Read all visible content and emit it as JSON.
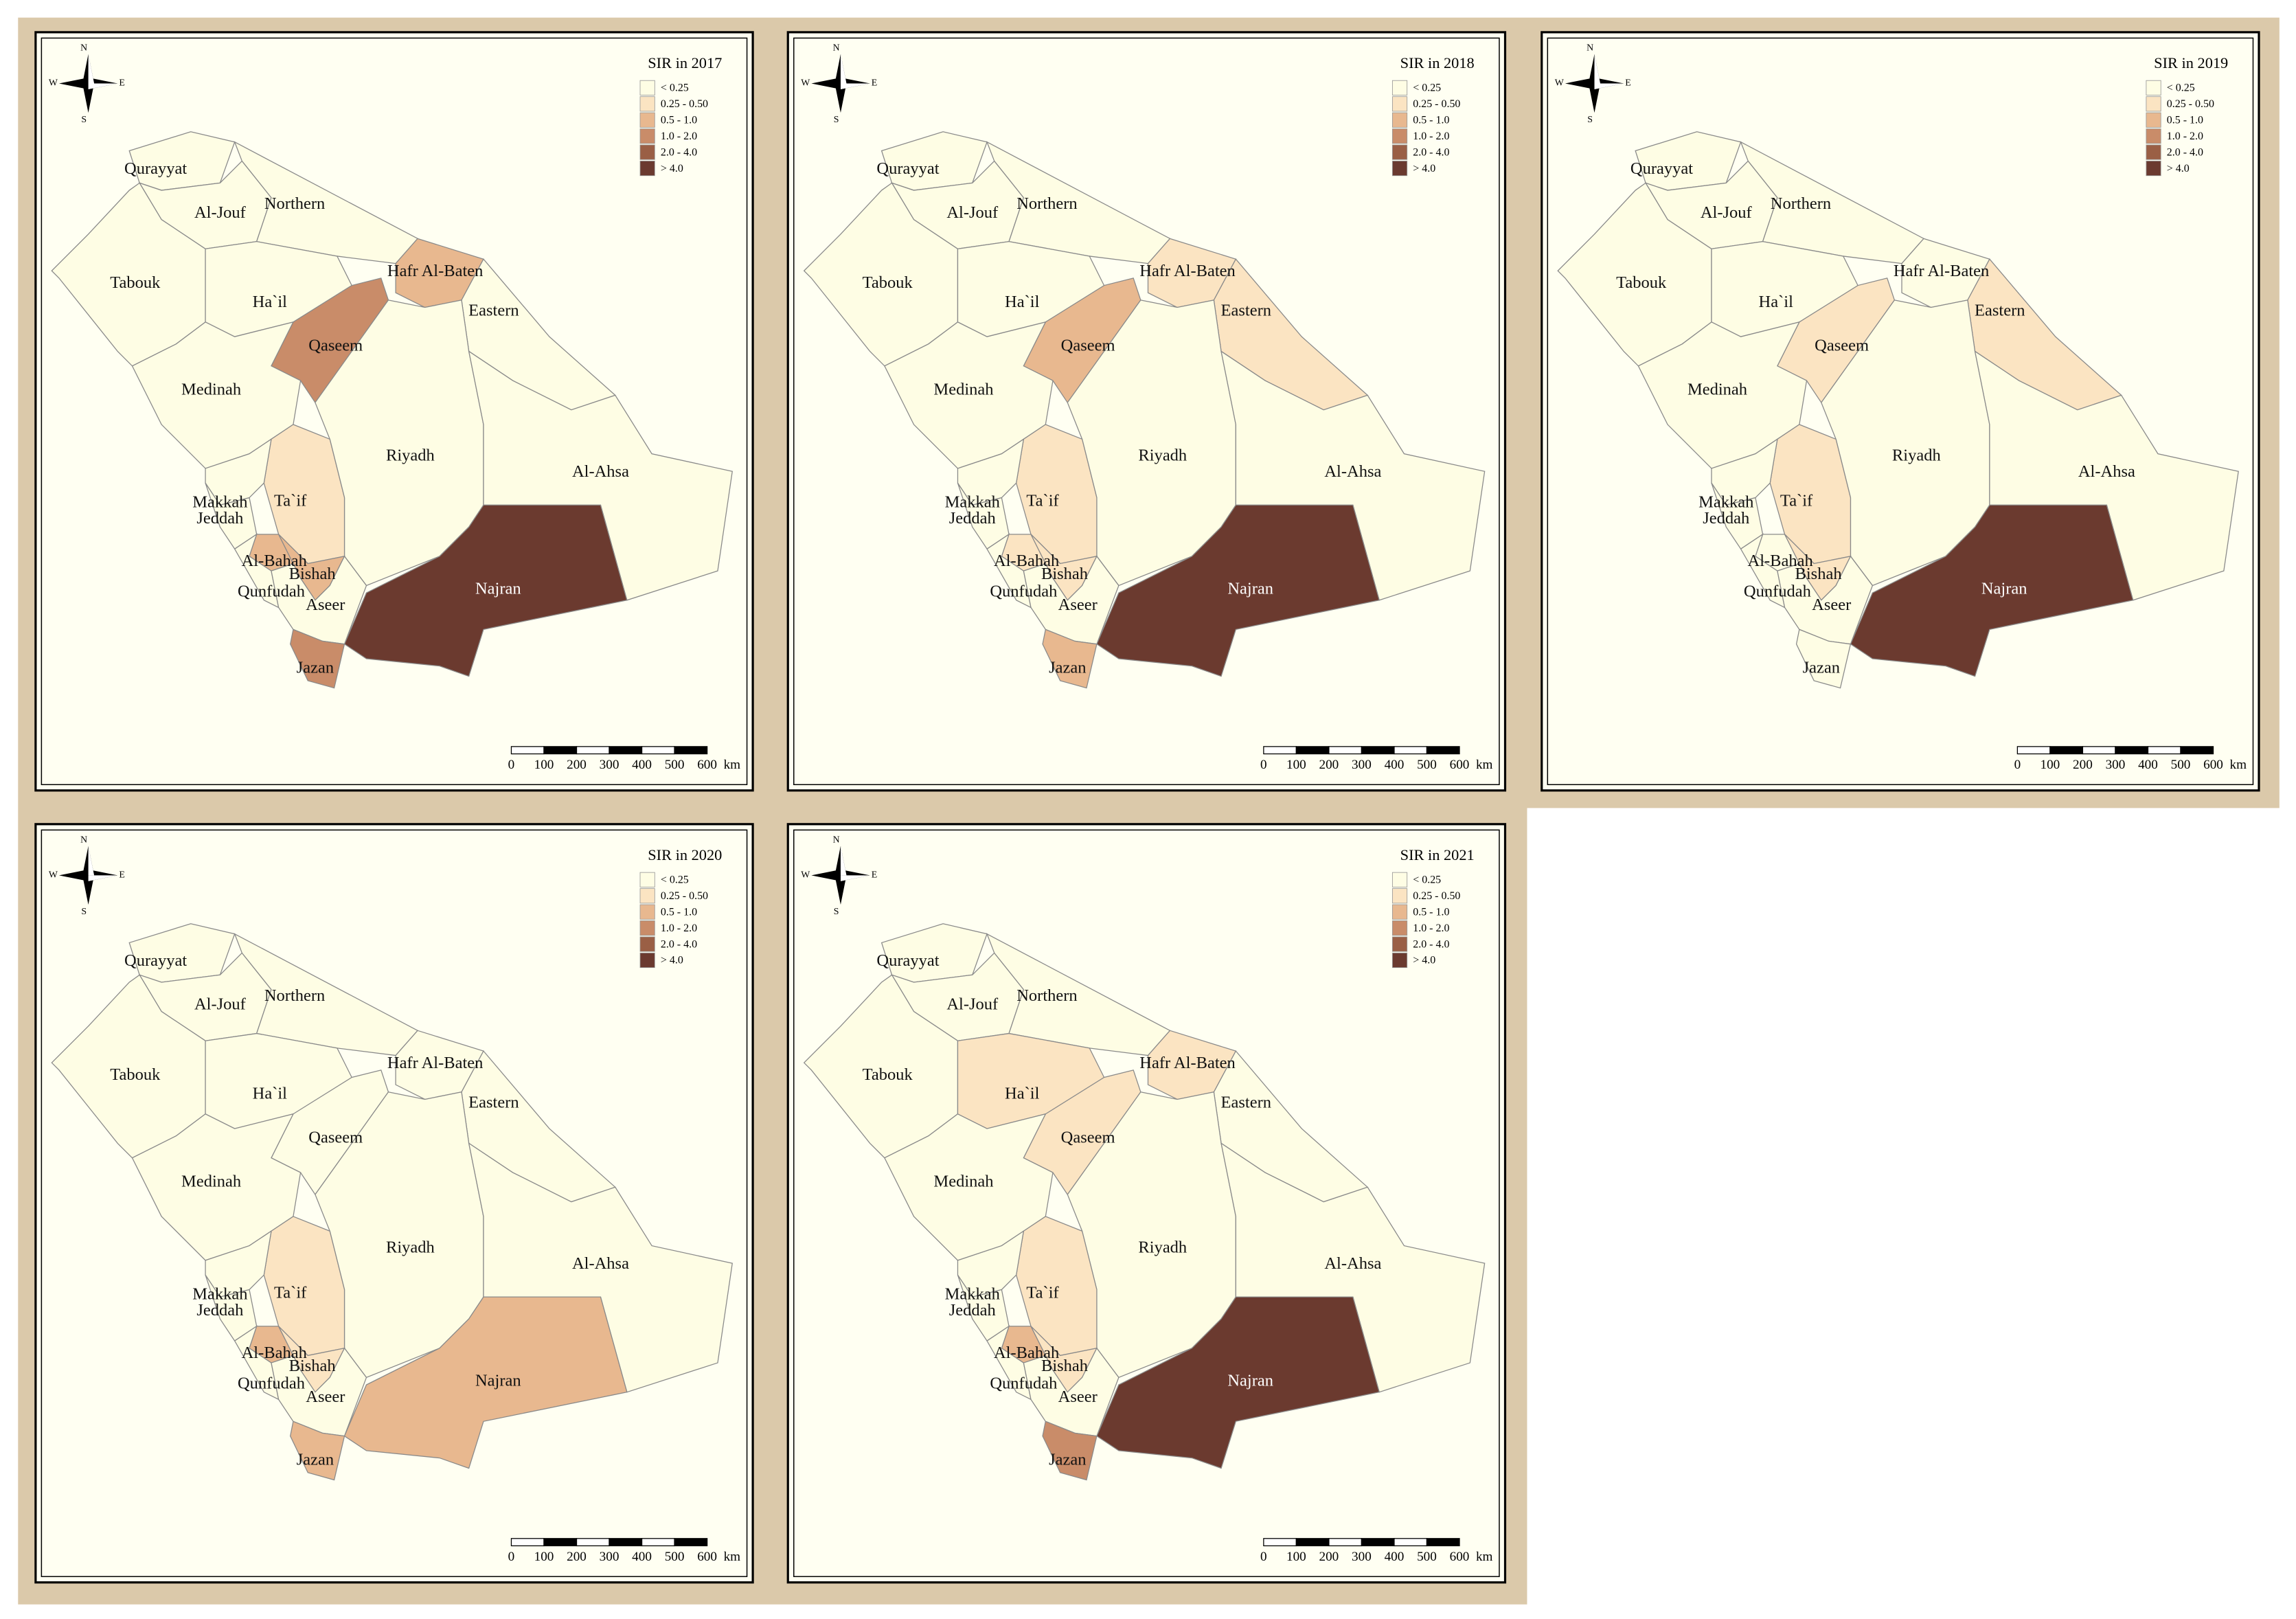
{
  "maps": [
    {
      "title": "SIR in 2017",
      "compass": {
        "n": "N",
        "e": "E",
        "s": "S",
        "w": "W"
      },
      "legend": [
        {
          "label": "< 0.25",
          "color": "#fefde4"
        },
        {
          "label": "0.25 - 0.50",
          "color": "#fbe4c2"
        },
        {
          "label": "0.5 - 1.0",
          "color": "#e8b88f"
        },
        {
          "label": "1.0 - 2.0",
          "color": "#c98c69"
        },
        {
          "label": "2.0 - 4.0",
          "color": "#9a5f45"
        },
        {
          "label": "> 4.0",
          "color": "#6b3a2f"
        }
      ],
      "regions": [
        {
          "name": "Qurayyat",
          "class": "< 0.25"
        },
        {
          "name": "Al-Jouf",
          "class": "< 0.25"
        },
        {
          "name": "Northern",
          "class": "< 0.25"
        },
        {
          "name": "Tabouk",
          "class": "< 0.25"
        },
        {
          "name": "Ha`il",
          "class": "< 0.25"
        },
        {
          "name": "Hafr Al-Baten",
          "class": "0.5 - 1.0"
        },
        {
          "name": "Qaseem",
          "class": "1.0 - 2.0"
        },
        {
          "name": "Medinah",
          "class": "< 0.25"
        },
        {
          "name": "Eastern",
          "class": "< 0.25"
        },
        {
          "name": "Riyadh",
          "class": "< 0.25"
        },
        {
          "name": "Al-Ahsa",
          "class": "< 0.25"
        },
        {
          "name": "Najran",
          "class": "> 4.0"
        },
        {
          "name": "Ta`if",
          "class": "0.25 - 0.50"
        },
        {
          "name": "Makkah",
          "class": "< 0.25"
        },
        {
          "name": "Jeddah",
          "class": "< 0.25"
        },
        {
          "name": "Al-Bahah",
          "class": "0.5 - 1.0"
        },
        {
          "name": "Bishah",
          "class": "0.5 - 1.0"
        },
        {
          "name": "Qunfudah",
          "class": "< 0.25"
        },
        {
          "name": "Aseer",
          "class": "< 0.25"
        },
        {
          "name": "Jazan",
          "class": "1.0 - 2.0"
        }
      ],
      "scale_labels": [
        "0",
        "100",
        "200",
        "300",
        "400",
        "500",
        "600"
      ],
      "scale_unit": "km"
    },
    {
      "title": "SIR in 2018",
      "compass": {
        "n": "N",
        "e": "E",
        "s": "S",
        "w": "W"
      },
      "legend": [
        {
          "label": "< 0.25",
          "color": "#fefde4"
        },
        {
          "label": "0.25 - 0.50",
          "color": "#fbe4c2"
        },
        {
          "label": "0.5 - 1.0",
          "color": "#e8b88f"
        },
        {
          "label": "1.0 - 2.0",
          "color": "#c98c69"
        },
        {
          "label": "2.0 - 4.0",
          "color": "#9a5f45"
        },
        {
          "label": "> 4.0",
          "color": "#6b3a2f"
        }
      ],
      "regions": [
        {
          "name": "Qurayyat",
          "class": "< 0.25"
        },
        {
          "name": "Al-Jouf",
          "class": "< 0.25"
        },
        {
          "name": "Northern",
          "class": "< 0.25"
        },
        {
          "name": "Tabouk",
          "class": "< 0.25"
        },
        {
          "name": "Ha`il",
          "class": "< 0.25"
        },
        {
          "name": "Hafr Al-Baten",
          "class": "0.25 - 0.50"
        },
        {
          "name": "Qaseem",
          "class": "0.5 - 1.0"
        },
        {
          "name": "Medinah",
          "class": "< 0.25"
        },
        {
          "name": "Eastern",
          "class": "0.25 - 0.50"
        },
        {
          "name": "Riyadh",
          "class": "< 0.25"
        },
        {
          "name": "Al-Ahsa",
          "class": "< 0.25"
        },
        {
          "name": "Najran",
          "class": "> 4.0"
        },
        {
          "name": "Ta`if",
          "class": "0.25 - 0.50"
        },
        {
          "name": "Makkah",
          "class": "< 0.25"
        },
        {
          "name": "Jeddah",
          "class": "< 0.25"
        },
        {
          "name": "Al-Bahah",
          "class": "0.25 - 0.50"
        },
        {
          "name": "Bishah",
          "class": "0.25 - 0.50"
        },
        {
          "name": "Qunfudah",
          "class": "< 0.25"
        },
        {
          "name": "Aseer",
          "class": "< 0.25"
        },
        {
          "name": "Jazan",
          "class": "0.5 - 1.0"
        }
      ],
      "scale_labels": [
        "0",
        "100",
        "200",
        "300",
        "400",
        "500",
        "600"
      ],
      "scale_unit": "km"
    },
    {
      "title": "SIR in 2019",
      "compass": {
        "n": "N",
        "e": "E",
        "s": "S",
        "w": "W"
      },
      "legend": [
        {
          "label": "< 0.25",
          "color": "#fefde4"
        },
        {
          "label": "0.25 - 0.50",
          "color": "#fbe4c2"
        },
        {
          "label": "0.5 - 1.0",
          "color": "#e8b88f"
        },
        {
          "label": "1.0 - 2.0",
          "color": "#c98c69"
        },
        {
          "label": "2.0 - 4.0",
          "color": "#9a5f45"
        },
        {
          "label": "> 4.0",
          "color": "#6b3a2f"
        }
      ],
      "regions": [
        {
          "name": "Qurayyat",
          "class": "< 0.25"
        },
        {
          "name": "Al-Jouf",
          "class": "< 0.25"
        },
        {
          "name": "Northern",
          "class": "< 0.25"
        },
        {
          "name": "Tabouk",
          "class": "< 0.25"
        },
        {
          "name": "Ha`il",
          "class": "< 0.25"
        },
        {
          "name": "Hafr Al-Baten",
          "class": "< 0.25"
        },
        {
          "name": "Qaseem",
          "class": "0.25 - 0.50"
        },
        {
          "name": "Medinah",
          "class": "< 0.25"
        },
        {
          "name": "Eastern",
          "class": "0.25 - 0.50"
        },
        {
          "name": "Riyadh",
          "class": "< 0.25"
        },
        {
          "name": "Al-Ahsa",
          "class": "< 0.25"
        },
        {
          "name": "Najran",
          "class": "> 4.0"
        },
        {
          "name": "Ta`if",
          "class": "0.25 - 0.50"
        },
        {
          "name": "Makkah",
          "class": "< 0.25"
        },
        {
          "name": "Jeddah",
          "class": "< 0.25"
        },
        {
          "name": "Al-Bahah",
          "class": "< 0.25"
        },
        {
          "name": "Bishah",
          "class": "0.25 - 0.50"
        },
        {
          "name": "Qunfudah",
          "class": "< 0.25"
        },
        {
          "name": "Aseer",
          "class": "< 0.25"
        },
        {
          "name": "Jazan",
          "class": "< 0.25"
        }
      ],
      "scale_labels": [
        "0",
        "100",
        "200",
        "300",
        "400",
        "500",
        "600"
      ],
      "scale_unit": "km"
    },
    {
      "title": "SIR in 2020",
      "compass": {
        "n": "N",
        "e": "E",
        "s": "S",
        "w": "W"
      },
      "legend": [
        {
          "label": "< 0.25",
          "color": "#fefde4"
        },
        {
          "label": "0.25 - 0.50",
          "color": "#fbe4c2"
        },
        {
          "label": "0.5 - 1.0",
          "color": "#e8b88f"
        },
        {
          "label": "1.0 - 2.0",
          "color": "#c98c69"
        },
        {
          "label": "2.0 - 4.0",
          "color": "#9a5f45"
        },
        {
          "label": "> 4.0",
          "color": "#6b3a2f"
        }
      ],
      "regions": [
        {
          "name": "Qurayyat",
          "class": "< 0.25"
        },
        {
          "name": "Al-Jouf",
          "class": "< 0.25"
        },
        {
          "name": "Northern",
          "class": "< 0.25"
        },
        {
          "name": "Tabouk",
          "class": "< 0.25"
        },
        {
          "name": "Ha`il",
          "class": "< 0.25"
        },
        {
          "name": "Hafr Al-Baten",
          "class": "< 0.25"
        },
        {
          "name": "Qaseem",
          "class": "< 0.25"
        },
        {
          "name": "Medinah",
          "class": "< 0.25"
        },
        {
          "name": "Eastern",
          "class": "< 0.25"
        },
        {
          "name": "Riyadh",
          "class": "< 0.25"
        },
        {
          "name": "Al-Ahsa",
          "class": "< 0.25"
        },
        {
          "name": "Najran",
          "class": "0.5 - 1.0"
        },
        {
          "name": "Ta`if",
          "class": "0.25 - 0.50"
        },
        {
          "name": "Makkah",
          "class": "< 0.25"
        },
        {
          "name": "Jeddah",
          "class": "< 0.25"
        },
        {
          "name": "Al-Bahah",
          "class": "0.5 - 1.0"
        },
        {
          "name": "Bishah",
          "class": "0.25 - 0.50"
        },
        {
          "name": "Qunfudah",
          "class": "< 0.25"
        },
        {
          "name": "Aseer",
          "class": "< 0.25"
        },
        {
          "name": "Jazan",
          "class": "0.5 - 1.0"
        }
      ],
      "scale_labels": [
        "0",
        "100",
        "200",
        "300",
        "400",
        "500",
        "600"
      ],
      "scale_unit": "km"
    },
    {
      "title": "SIR in 2021",
      "compass": {
        "n": "N",
        "e": "E",
        "s": "S",
        "w": "W"
      },
      "legend": [
        {
          "label": "< 0.25",
          "color": "#fefde4"
        },
        {
          "label": "0.25 - 0.50",
          "color": "#fbe4c2"
        },
        {
          "label": "0.5 - 1.0",
          "color": "#e8b88f"
        },
        {
          "label": "1.0 - 2.0",
          "color": "#c98c69"
        },
        {
          "label": "2.0 - 4.0",
          "color": "#9a5f45"
        },
        {
          "label": "> 4.0",
          "color": "#6b3a2f"
        }
      ],
      "regions": [
        {
          "name": "Qurayyat",
          "class": "< 0.25"
        },
        {
          "name": "Al-Jouf",
          "class": "< 0.25"
        },
        {
          "name": "Northern",
          "class": "< 0.25"
        },
        {
          "name": "Tabouk",
          "class": "< 0.25"
        },
        {
          "name": "Ha`il",
          "class": "0.25 - 0.50"
        },
        {
          "name": "Hafr Al-Baten",
          "class": "0.25 - 0.50"
        },
        {
          "name": "Qaseem",
          "class": "0.25 - 0.50"
        },
        {
          "name": "Medinah",
          "class": "< 0.25"
        },
        {
          "name": "Eastern",
          "class": "< 0.25"
        },
        {
          "name": "Riyadh",
          "class": "< 0.25"
        },
        {
          "name": "Al-Ahsa",
          "class": "< 0.25"
        },
        {
          "name": "Najran",
          "class": "> 4.0"
        },
        {
          "name": "Ta`if",
          "class": "0.25 - 0.50"
        },
        {
          "name": "Makkah",
          "class": "< 0.25"
        },
        {
          "name": "Jeddah",
          "class": "< 0.25"
        },
        {
          "name": "Al-Bahah",
          "class": "0.5 - 1.0"
        },
        {
          "name": "Bishah",
          "class": "0.25 - 0.50"
        },
        {
          "name": "Qunfudah",
          "class": "< 0.25"
        },
        {
          "name": "Aseer",
          "class": "< 0.25"
        },
        {
          "name": "Jazan",
          "class": "1.0 - 2.0"
        }
      ],
      "scale_labels": [
        "0",
        "100",
        "200",
        "300",
        "400",
        "500",
        "600"
      ],
      "scale_unit": "km"
    }
  ]
}
